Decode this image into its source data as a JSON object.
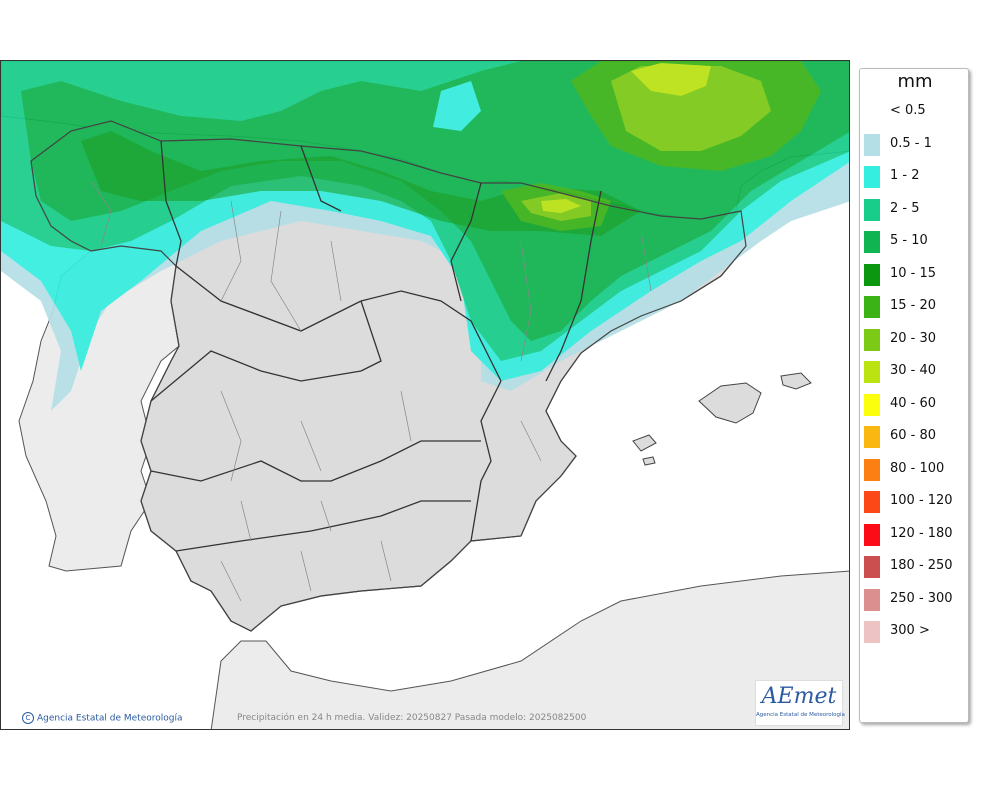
{
  "legend": {
    "title": "mm",
    "items": [
      {
        "label": "< 0.5",
        "color": "#ffffff"
      },
      {
        "label": "0.5 - 1",
        "color": "#b4dfe6"
      },
      {
        "label": "1 - 2",
        "color": "#34eedf"
      },
      {
        "label": "2 - 5",
        "color": "#17cd89"
      },
      {
        "label": "5 - 10",
        "color": "#10b450"
      },
      {
        "label": "10 - 15",
        "color": "#0b970f"
      },
      {
        "label": "15 - 20",
        "color": "#3bb317"
      },
      {
        "label": "20 - 30",
        "color": "#7cc916"
      },
      {
        "label": "30 - 40",
        "color": "#bbe312"
      },
      {
        "label": "40 - 60",
        "color": "#fbff0d"
      },
      {
        "label": "60 - 80",
        "color": "#fbb711"
      },
      {
        "label": "80 - 100",
        "color": "#fb7f12"
      },
      {
        "label": "100 - 120",
        "color": "#fb4816"
      },
      {
        "label": "120 - 180",
        "color": "#fb0c17"
      },
      {
        "label": "180 - 250",
        "color": "#cc4f4f"
      },
      {
        "label": "250 - 300",
        "color": "#dc8f8f"
      },
      {
        "label": "300 >",
        "color": "#eec3c3"
      }
    ]
  },
  "footer": {
    "credit": "Agencia Estatal de Meteorología",
    "caption": "Precipitación en 24 h media. Validez: 20250827 Pasada modelo: 2025082500"
  },
  "logo": {
    "word": "AEmet",
    "subtitle": "Agencia Estatal de Meteorología"
  },
  "map_colors": {
    "sea": "#ffffff",
    "land": "#dcdcdc",
    "foreign_land": "#ececec",
    "border": "#555555"
  }
}
